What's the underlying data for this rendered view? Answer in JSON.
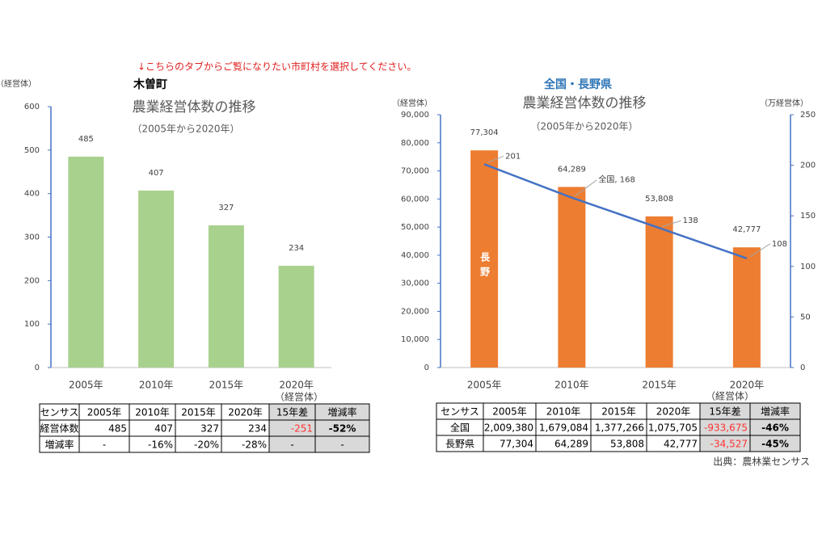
{
  "note": "↓こちらのタブからご覧になりたい市町村を選択してください。",
  "chart_data": [
    {
      "type": "bar",
      "heading": "木曽町",
      "y_label": "（経営体）",
      "title": "農業経営体数の推移",
      "subtitle": "（2005年から2020年）",
      "categories": [
        "2005年",
        "2010年",
        "2015年",
        "2020年"
      ],
      "values": [
        485,
        407,
        327,
        234
      ],
      "color": "#a9d18e",
      "ylim": [
        0,
        600
      ],
      "yticks": [
        0,
        100,
        200,
        300,
        400,
        500,
        600
      ]
    },
    {
      "type": "bar_line",
      "heading": "全国・長野県",
      "y_label": "（経営体）",
      "y2_label": "（万経営体）",
      "title": "農業経営体数の推移",
      "subtitle": "（2005年から2020年）",
      "categories": [
        "2005年",
        "2010年",
        "2015年",
        "2020年"
      ],
      "series": [
        {
          "name": "長野",
          "type": "bar",
          "color": "#ed7d31",
          "values": [
            77304,
            64289,
            53808,
            42777
          ],
          "value_labels": [
            "77,304",
            "64,289",
            "53,808",
            "42,777"
          ]
        },
        {
          "name": "全国",
          "type": "line",
          "axis": "y2",
          "color": "#4472c4",
          "values": [
            201,
            168,
            138,
            108
          ],
          "value_labels": [
            "201",
            "全国, 168",
            "138",
            "108"
          ]
        }
      ],
      "ylim": [
        0,
        90000
      ],
      "yticks": [
        0,
        {
          "value": 10000,
          "label": "10,000"
        },
        {
          "value": 20000,
          "label": "20,000"
        },
        {
          "value": 30000,
          "label": "30,000"
        },
        {
          "value": 40000,
          "label": "40,000"
        },
        {
          "value": 50000,
          "label": "50,000"
        },
        {
          "value": 60000,
          "label": "60,000"
        },
        {
          "value": 70000,
          "label": "70,000"
        },
        {
          "value": 80000,
          "label": "80,000"
        },
        {
          "value": 90000,
          "label": "90,000"
        }
      ],
      "y2lim": [
        0,
        250
      ],
      "y2ticks": [
        0,
        50,
        100,
        150,
        200,
        250
      ]
    }
  ],
  "tables": [
    {
      "unit": "（経営体）",
      "header": [
        "センサス",
        "2005年",
        "2010年",
        "2015年",
        "2020年",
        "15年差",
        "増減率"
      ],
      "rows": [
        [
          "経営体数",
          "485",
          "407",
          "327",
          "234",
          "-251",
          "-52%"
        ],
        [
          "増減率",
          "-",
          "-16%",
          "-20%",
          "-28%",
          "-",
          "-"
        ]
      ]
    },
    {
      "unit": "（経営体）",
      "header": [
        "センサス",
        "2005年",
        "2010年",
        "2015年",
        "2020年",
        "15年差",
        "増減率"
      ],
      "rows": [
        [
          "全国",
          "2,009,380",
          "1,679,084",
          "1,377,266",
          "1,075,705",
          "-933,675",
          "-46%"
        ],
        [
          "長野県",
          "77,304",
          "64,289",
          "53,808",
          "42,777",
          "-34,527",
          "-45%"
        ]
      ]
    }
  ],
  "source": "出典：農林業センサス"
}
